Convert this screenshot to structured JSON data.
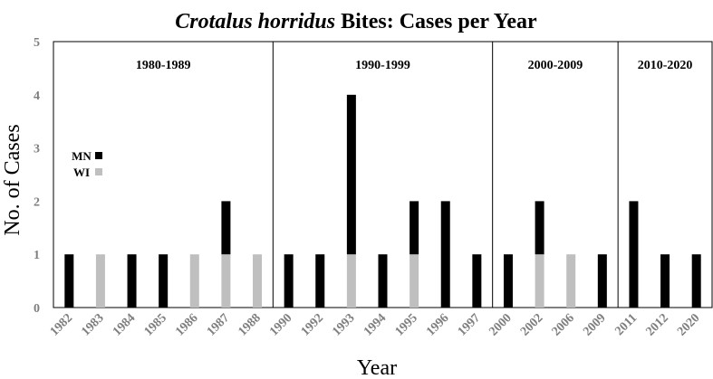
{
  "chart_data": {
    "type": "bar",
    "stacked": true,
    "title_italic": "Crotalus horridus",
    "title_rest": " Bites: Cases per Year",
    "xlabel": "Year",
    "ylabel": "No. of Cases",
    "ylim": [
      0,
      5
    ],
    "yticks": [
      "0",
      "1",
      "2",
      "3",
      "4",
      "5"
    ],
    "grid": false,
    "legend_position": "left",
    "categories": [
      "1982",
      "1983",
      "1984",
      "1985",
      "1986",
      "1987",
      "1988",
      "1990",
      "1992",
      "1993",
      "1994",
      "1995",
      "1996",
      "1997",
      "2000",
      "2002",
      "2006",
      "2009",
      "2011",
      "2012",
      "2020"
    ],
    "series": [
      {
        "name": "WI",
        "color": "#bfbfbf",
        "values": [
          0,
          1,
          0,
          0,
          1,
          1,
          1,
          0,
          0,
          1,
          0,
          1,
          0,
          0,
          0,
          1,
          1,
          0,
          0,
          0,
          0
        ]
      },
      {
        "name": "MN",
        "color": "#000000",
        "values": [
          1,
          0,
          1,
          1,
          0,
          1,
          0,
          1,
          1,
          3,
          1,
          1,
          2,
          1,
          1,
          1,
          0,
          1,
          2,
          1,
          1
        ]
      }
    ],
    "legend": [
      {
        "name": "MN",
        "color": "#000000"
      },
      {
        "name": "WI",
        "color": "#bfbfbf"
      }
    ],
    "decades": [
      {
        "label": "1980-1989",
        "first_index": 0,
        "last_index": 6
      },
      {
        "label": "1990-1999",
        "first_index": 7,
        "last_index": 13
      },
      {
        "label": "2000-2009",
        "first_index": 14,
        "last_index": 17
      },
      {
        "label": "2010-2020",
        "first_index": 18,
        "last_index": 20
      }
    ]
  }
}
